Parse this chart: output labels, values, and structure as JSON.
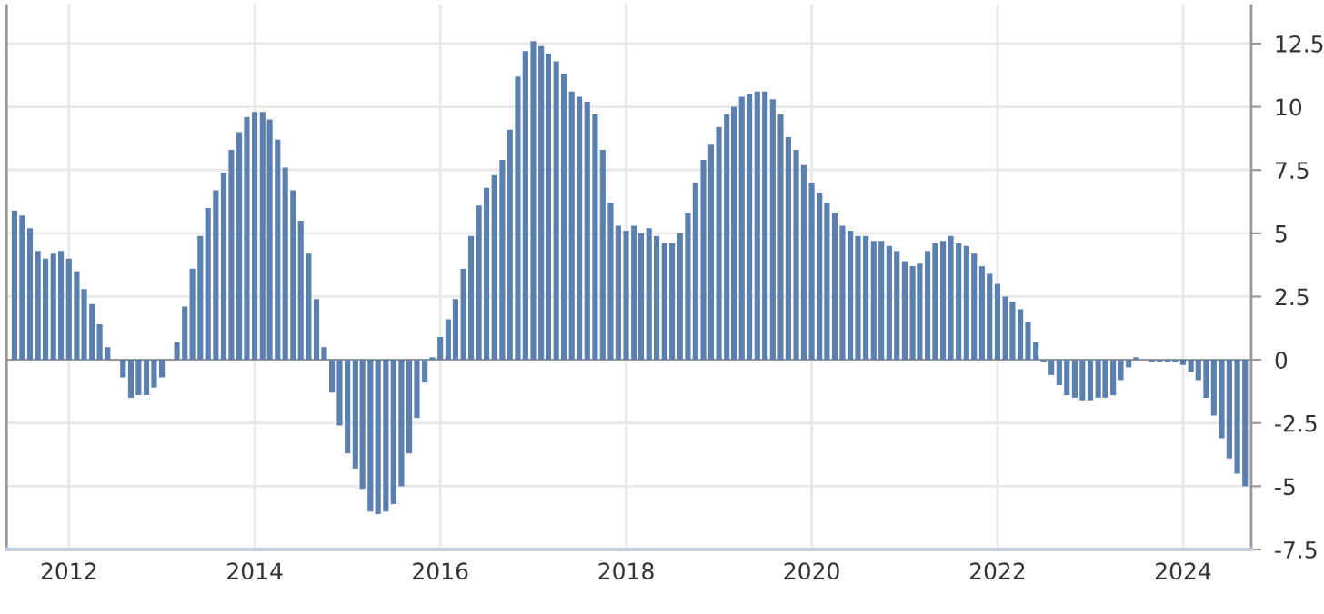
{
  "chart_data": {
    "type": "bar",
    "x": [
      "2011-06",
      "2011-07",
      "2011-08",
      "2011-09",
      "2011-10",
      "2011-11",
      "2011-12",
      "2012-01",
      "2012-02",
      "2012-03",
      "2012-04",
      "2012-05",
      "2012-06",
      "2012-07",
      "2012-08",
      "2012-09",
      "2012-10",
      "2012-11",
      "2012-12",
      "2013-01",
      "2013-02",
      "2013-03",
      "2013-04",
      "2013-05",
      "2013-06",
      "2013-07",
      "2013-08",
      "2013-09",
      "2013-10",
      "2013-11",
      "2013-12",
      "2014-01",
      "2014-02",
      "2014-03",
      "2014-04",
      "2014-05",
      "2014-06",
      "2014-07",
      "2014-08",
      "2014-09",
      "2014-10",
      "2014-11",
      "2014-12",
      "2015-01",
      "2015-02",
      "2015-03",
      "2015-04",
      "2015-05",
      "2015-06",
      "2015-07",
      "2015-08",
      "2015-09",
      "2015-10",
      "2015-11",
      "2015-12",
      "2016-01",
      "2016-02",
      "2016-03",
      "2016-04",
      "2016-05",
      "2016-06",
      "2016-07",
      "2016-08",
      "2016-09",
      "2016-10",
      "2016-11",
      "2016-12",
      "2017-01",
      "2017-02",
      "2017-03",
      "2017-04",
      "2017-05",
      "2017-06",
      "2017-07",
      "2017-08",
      "2017-09",
      "2017-10",
      "2017-11",
      "2017-12",
      "2018-01",
      "2018-02",
      "2018-03",
      "2018-04",
      "2018-05",
      "2018-06",
      "2018-07",
      "2018-08",
      "2018-09",
      "2018-10",
      "2018-11",
      "2018-12",
      "2019-01",
      "2019-02",
      "2019-03",
      "2019-04",
      "2019-05",
      "2019-06",
      "2019-07",
      "2019-08",
      "2019-09",
      "2019-10",
      "2019-11",
      "2019-12",
      "2020-01",
      "2020-02",
      "2020-03",
      "2020-04",
      "2020-05",
      "2020-06",
      "2020-07",
      "2020-08",
      "2020-09",
      "2020-10",
      "2020-11",
      "2020-12",
      "2021-01",
      "2021-02",
      "2021-03",
      "2021-04",
      "2021-05",
      "2021-06",
      "2021-07",
      "2021-08",
      "2021-09",
      "2021-10",
      "2021-11",
      "2021-12",
      "2022-01",
      "2022-02",
      "2022-03",
      "2022-04",
      "2022-05",
      "2022-06",
      "2022-07",
      "2022-08",
      "2022-09",
      "2022-10",
      "2022-11",
      "2022-12",
      "2023-01",
      "2023-02",
      "2023-03",
      "2023-04",
      "2023-05",
      "2023-06",
      "2023-07",
      "2023-08",
      "2023-09",
      "2023-10",
      "2023-11",
      "2023-12",
      "2024-01",
      "2024-02",
      "2024-03",
      "2024-04",
      "2024-05",
      "2024-06",
      "2024-07",
      "2024-08",
      "2024-09"
    ],
    "values": [
      5.9,
      5.7,
      5.2,
      4.3,
      4.0,
      4.2,
      4.3,
      4.0,
      3.5,
      2.8,
      2.2,
      1.4,
      0.5,
      0.0,
      -0.7,
      -1.5,
      -1.4,
      -1.4,
      -1.1,
      -0.7,
      0.0,
      0.7,
      2.1,
      3.6,
      4.9,
      6.0,
      6.7,
      7.4,
      8.3,
      9.0,
      9.6,
      9.8,
      9.8,
      9.5,
      8.7,
      7.6,
      6.7,
      5.5,
      4.2,
      2.4,
      0.5,
      -1.3,
      -2.6,
      -3.7,
      -4.3,
      -5.1,
      -6.0,
      -6.1,
      -6.0,
      -5.7,
      -5.0,
      -3.7,
      -2.3,
      -0.9,
      0.1,
      0.9,
      1.6,
      2.4,
      3.6,
      4.9,
      6.1,
      6.8,
      7.3,
      7.9,
      9.1,
      11.2,
      12.2,
      12.6,
      12.4,
      12.1,
      11.8,
      11.3,
      10.6,
      10.4,
      10.2,
      9.7,
      8.3,
      6.2,
      5.3,
      5.1,
      5.3,
      5.0,
      5.2,
      4.9,
      4.6,
      4.6,
      5.0,
      5.8,
      7.0,
      7.9,
      8.5,
      9.2,
      9.7,
      10.0,
      10.4,
      10.5,
      10.6,
      10.6,
      10.3,
      9.7,
      8.8,
      8.3,
      7.7,
      7.0,
      6.6,
      6.2,
      5.8,
      5.3,
      5.1,
      4.9,
      4.9,
      4.7,
      4.7,
      4.5,
      4.3,
      3.9,
      3.7,
      3.8,
      4.3,
      4.6,
      4.7,
      4.9,
      4.6,
      4.5,
      4.2,
      3.7,
      3.4,
      3.0,
      2.5,
      2.3,
      2.0,
      1.5,
      0.7,
      -0.1,
      -0.6,
      -1.0,
      -1.4,
      -1.5,
      -1.6,
      -1.6,
      -1.5,
      -1.5,
      -1.4,
      -0.8,
      -0.3,
      0.1,
      0.0,
      -0.1,
      -0.1,
      -0.1,
      -0.1,
      -0.2,
      -0.5,
      -0.8,
      -1.5,
      -2.2,
      -3.1,
      -3.9,
      -4.5,
      -5.0
    ],
    "color": "#5b80b0",
    "xlim": [
      "2011-05-01",
      "2024-09-25"
    ],
    "xticks": [
      {
        "value": "2012",
        "label": "2012"
      },
      {
        "value": "2014",
        "label": "2014"
      },
      {
        "value": "2016",
        "label": "2016"
      },
      {
        "value": "2018",
        "label": "2018"
      },
      {
        "value": "2020",
        "label": "2020"
      },
      {
        "value": "2022",
        "label": "2022"
      },
      {
        "value": "2024",
        "label": "2024"
      }
    ],
    "ylim": [
      -7.5,
      14.1
    ],
    "yticks": [
      {
        "value": -7.5,
        "label": "-7.5"
      },
      {
        "value": -5,
        "label": "-5"
      },
      {
        "value": -2.5,
        "label": "-2.5"
      },
      0,
      2.5,
      5,
      7.5,
      10,
      12.5
    ],
    "grid": true
  }
}
